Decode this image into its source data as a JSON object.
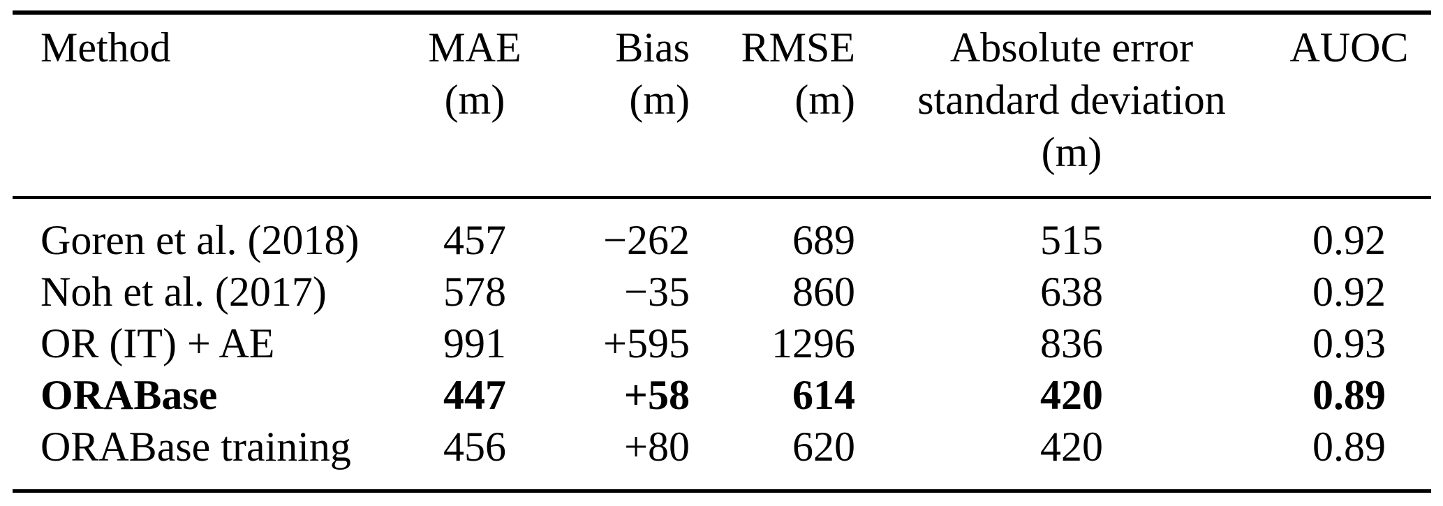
{
  "table": {
    "colors": {
      "text": "#000000",
      "background": "#ffffff",
      "rule": "#000000"
    },
    "columns": [
      {
        "id": "method",
        "label_lines": [
          "Method"
        ]
      },
      {
        "id": "mae",
        "label_lines": [
          "MAE",
          "(m)"
        ]
      },
      {
        "id": "bias",
        "label_lines": [
          "Bias",
          "(m)"
        ]
      },
      {
        "id": "rmse",
        "label_lines": [
          "RMSE",
          "(m)"
        ]
      },
      {
        "id": "abs_err_std",
        "label_lines": [
          "Absolute error",
          "standard deviation",
          "(m)"
        ]
      },
      {
        "id": "auoc",
        "label_lines": [
          "AUOC"
        ]
      }
    ],
    "rows": [
      {
        "method": "Goren et al. (2018)",
        "mae": "457",
        "bias": "−262",
        "rmse": "689",
        "abs_err_std": "515",
        "auoc": "0.92",
        "bold": false
      },
      {
        "method": "Noh et al. (2017)",
        "mae": "578",
        "bias": "−35",
        "rmse": "860",
        "abs_err_std": "638",
        "auoc": "0.92",
        "bold": false
      },
      {
        "method": "OR (IT) + AE",
        "mae": "991",
        "bias": "+595",
        "rmse": "1296",
        "abs_err_std": "836",
        "auoc": "0.93",
        "bold": false
      },
      {
        "method": "ORABase",
        "mae": "447",
        "bias": "+58",
        "rmse": "614",
        "abs_err_std": "420",
        "auoc": "0.89",
        "bold": true
      },
      {
        "method": "ORABase training",
        "mae": "456",
        "bias": "+80",
        "rmse": "620",
        "abs_err_std": "420",
        "auoc": "0.89",
        "bold": false
      }
    ]
  }
}
